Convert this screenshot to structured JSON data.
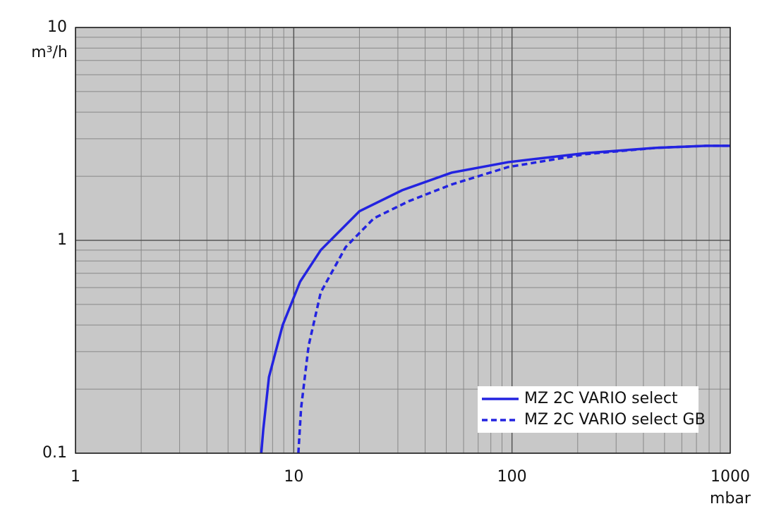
{
  "chart_data": {
    "type": "line",
    "x_label": "mbar",
    "y_label": "m³/h",
    "log_x": true,
    "log_y": true,
    "grid": true,
    "minor_grid": true,
    "xlim": [
      1,
      1000
    ],
    "xticks": [
      1,
      10,
      100,
      1000
    ],
    "ylim": [
      0.1,
      10
    ],
    "yticks": [
      0.1,
      1,
      10
    ],
    "legend": "lower right",
    "background": "#c8c8c8",
    "series": [
      {
        "name": "MZ 2C VARIO select",
        "color": "#2323e0",
        "dash": false,
        "x": [
          7.1,
          7.25,
          7.7,
          8.9,
          10.7,
          13.3,
          20,
          31.4,
          52.9,
          96,
          217,
          458,
          776,
          1000
        ],
        "values": [
          0.1,
          0.129,
          0.228,
          0.4,
          0.64,
          0.9,
          1.37,
          1.72,
          2.08,
          2.33,
          2.57,
          2.72,
          2.78,
          2.78
        ]
      },
      {
        "name": "MZ 2C VARIO select GB",
        "color": "#2323e0",
        "dash": true,
        "x": [
          10.5,
          10.8,
          11.7,
          13.3,
          17.3,
          23.3,
          33.8,
          52.9,
          96,
          217,
          458,
          776,
          1000
        ],
        "values": [
          0.1,
          0.162,
          0.32,
          0.57,
          0.93,
          1.27,
          1.53,
          1.83,
          2.21,
          2.54,
          2.72,
          2.78,
          2.78
        ]
      }
    ]
  }
}
